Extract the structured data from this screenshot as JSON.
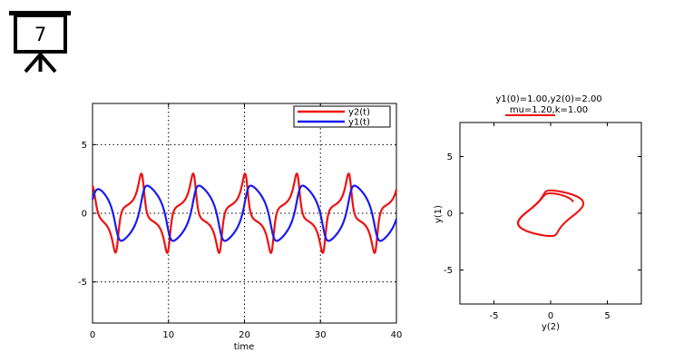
{
  "badge": {
    "number": "7",
    "icon": "presentation-board-icon"
  },
  "colors": {
    "y2": "#ee1111",
    "y1": "#1a1aee",
    "grid": "#000000"
  },
  "chart_data": [
    {
      "type": "line",
      "title": "",
      "xlabel": "time",
      "ylabel": "",
      "xlim": [
        0,
        40
      ],
      "ylim": [
        -8,
        8
      ],
      "xticks": [
        "0",
        "10",
        "20",
        "30",
        "40"
      ],
      "yticks": [
        "-5",
        "0",
        "5"
      ],
      "grid": true,
      "legend": "top-right",
      "model": {
        "mu": 1.2,
        "k": 1.0,
        "y1_0": 1.0,
        "y2_0": 2.0
      },
      "series": [
        {
          "name": "y2(t)",
          "color": "#ee1111"
        },
        {
          "name": "y1(t)",
          "color": "#1a1aee"
        }
      ]
    },
    {
      "type": "line",
      "title": "y1(0)=1.00,y2(0)=2.00",
      "subtitle": "mu=1.20,k=1.00",
      "xlabel": "y(2)",
      "ylabel": "y(1)",
      "xlim": [
        -8,
        8
      ],
      "ylim": [
        -8,
        8
      ],
      "xticks": [
        "-5",
        "0",
        "5"
      ],
      "yticks": [
        "-5",
        "0",
        "5"
      ],
      "grid": false,
      "series": [
        {
          "color": "#ee1111"
        }
      ]
    }
  ]
}
